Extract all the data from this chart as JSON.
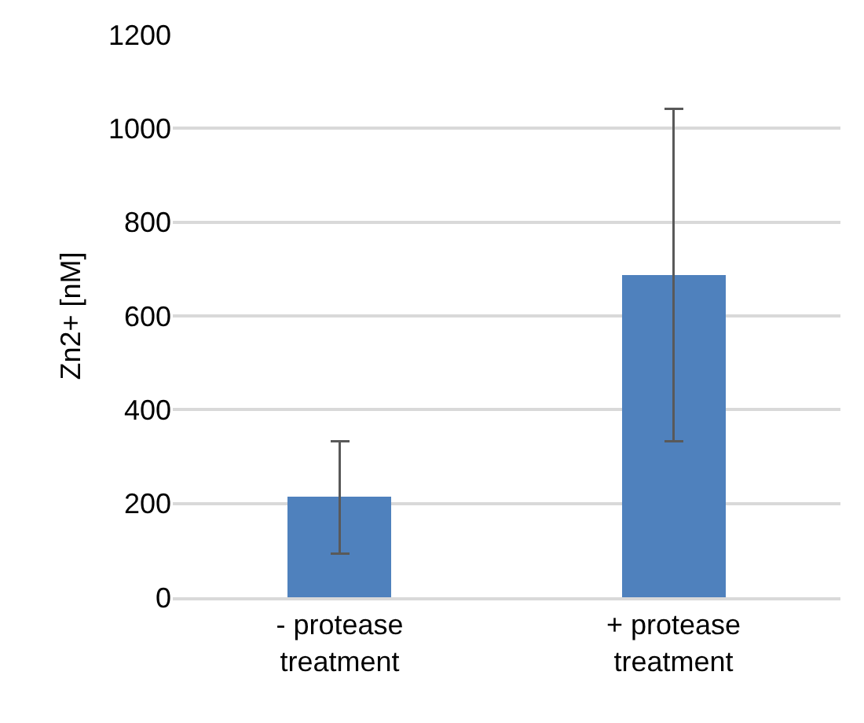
{
  "chart_data": {
    "type": "bar",
    "ylabel": "Zn2+ [nM]",
    "categories": [
      "- protease treatment",
      "+ protease treatment"
    ],
    "values": [
      213,
      687
    ],
    "errors": [
      120,
      354
    ],
    "color": "#4f81bd",
    "ylim": [
      0,
      1200
    ],
    "yticks": [
      0,
      200,
      400,
      600,
      800,
      1000,
      1200
    ],
    "grid": "y"
  }
}
